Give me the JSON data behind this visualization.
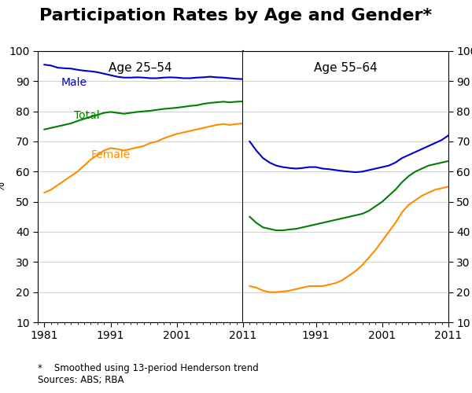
{
  "title": "Participation Rates by Age and Gender*",
  "subtitle_left": "Age 25–54",
  "subtitle_right": "Age 55–64",
  "ylabel_left": "%",
  "ylabel_right": "%",
  "ylim": [
    10,
    100
  ],
  "yticks": [
    10,
    20,
    30,
    40,
    50,
    60,
    70,
    80,
    90,
    100
  ],
  "xticks_left": [
    1981,
    1991,
    2001,
    2011
  ],
  "xticks_right": [
    1991,
    2001,
    2011
  ],
  "xlim_left": [
    1980,
    2011
  ],
  "xlim_right": [
    1980,
    2011
  ],
  "footnote": "*    Smoothed using 13-period Henderson trend\nSources: ABS; RBA",
  "male_color": "#0000cc",
  "total_color": "#008000",
  "female_color": "#ff8c00",
  "line_width": 1.5,
  "panel_label_fontsize": 11,
  "title_fontsize": 16,
  "tick_fontsize": 10,
  "annotation_fontsize": 10,
  "left_male": {
    "x": [
      1981,
      1982,
      1983,
      1984,
      1985,
      1986,
      1987,
      1988,
      1989,
      1990,
      1991,
      1992,
      1993,
      1994,
      1995,
      1996,
      1997,
      1998,
      1999,
      2000,
      2001,
      2002,
      2003,
      2004,
      2005,
      2006,
      2007,
      2008,
      2009,
      2010,
      2011
    ],
    "y": [
      95.5,
      95.2,
      94.5,
      94.3,
      94.2,
      93.8,
      93.5,
      93.3,
      93.0,
      92.5,
      92.0,
      91.5,
      91.2,
      91.2,
      91.3,
      91.2,
      91.0,
      91.0,
      91.2,
      91.3,
      91.2,
      91.0,
      91.0,
      91.2,
      91.3,
      91.5,
      91.3,
      91.2,
      91.0,
      90.8,
      90.7
    ]
  },
  "left_total": {
    "x": [
      1981,
      1982,
      1983,
      1984,
      1985,
      1986,
      1987,
      1988,
      1989,
      1990,
      1991,
      1992,
      1993,
      1994,
      1995,
      1996,
      1997,
      1998,
      1999,
      2000,
      2001,
      2002,
      2003,
      2004,
      2005,
      2006,
      2007,
      2008,
      2009,
      2010,
      2011
    ],
    "y": [
      74.0,
      74.5,
      75.0,
      75.5,
      76.0,
      76.8,
      77.5,
      78.2,
      78.8,
      79.5,
      79.8,
      79.5,
      79.2,
      79.5,
      79.8,
      80.0,
      80.2,
      80.5,
      80.8,
      81.0,
      81.2,
      81.5,
      81.8,
      82.0,
      82.5,
      82.8,
      83.0,
      83.2,
      83.0,
      83.2,
      83.3
    ]
  },
  "left_female": {
    "x": [
      1981,
      1982,
      1983,
      1984,
      1985,
      1986,
      1987,
      1988,
      1989,
      1990,
      1991,
      1992,
      1993,
      1994,
      1995,
      1996,
      1997,
      1998,
      1999,
      2000,
      2001,
      2002,
      2003,
      2004,
      2005,
      2006,
      2007,
      2008,
      2009,
      2010,
      2011
    ],
    "y": [
      53.0,
      54.0,
      55.5,
      57.0,
      58.5,
      60.0,
      62.0,
      64.0,
      65.5,
      67.0,
      67.8,
      67.5,
      67.0,
      67.5,
      68.0,
      68.5,
      69.5,
      70.0,
      71.0,
      71.8,
      72.5,
      73.0,
      73.5,
      74.0,
      74.5,
      75.0,
      75.5,
      75.8,
      75.5,
      75.8,
      76.0
    ]
  },
  "right_male": {
    "x": [
      1981,
      1982,
      1983,
      1984,
      1985,
      1986,
      1987,
      1988,
      1989,
      1990,
      1991,
      1992,
      1993,
      1994,
      1995,
      1996,
      1997,
      1998,
      1999,
      2000,
      2001,
      2002,
      2003,
      2004,
      2005,
      2006,
      2007,
      2008,
      2009,
      2010,
      2011
    ],
    "y": [
      70.0,
      67.0,
      64.5,
      63.0,
      62.0,
      61.5,
      61.2,
      61.0,
      61.2,
      61.5,
      61.5,
      61.0,
      60.8,
      60.5,
      60.2,
      60.0,
      59.8,
      60.0,
      60.5,
      61.0,
      61.5,
      62.0,
      63.0,
      64.5,
      65.5,
      66.5,
      67.5,
      68.5,
      69.5,
      70.5,
      72.0
    ]
  },
  "right_total": {
    "x": [
      1981,
      1982,
      1983,
      1984,
      1985,
      1986,
      1987,
      1988,
      1989,
      1990,
      1991,
      1992,
      1993,
      1994,
      1995,
      1996,
      1997,
      1998,
      1999,
      2000,
      2001,
      2002,
      2003,
      2004,
      2005,
      2006,
      2007,
      2008,
      2009,
      2010,
      2011
    ],
    "y": [
      45.0,
      43.0,
      41.5,
      41.0,
      40.5,
      40.5,
      40.8,
      41.0,
      41.5,
      42.0,
      42.5,
      43.0,
      43.5,
      44.0,
      44.5,
      45.0,
      45.5,
      46.0,
      47.0,
      48.5,
      50.0,
      52.0,
      54.0,
      56.5,
      58.5,
      60.0,
      61.0,
      62.0,
      62.5,
      63.0,
      63.5
    ]
  },
  "right_female": {
    "x": [
      1981,
      1982,
      1983,
      1984,
      1985,
      1986,
      1987,
      1988,
      1989,
      1990,
      1991,
      1992,
      1993,
      1994,
      1995,
      1996,
      1997,
      1998,
      1999,
      2000,
      2001,
      2002,
      2003,
      2004,
      2005,
      2006,
      2007,
      2008,
      2009,
      2010,
      2011
    ],
    "y": [
      22.0,
      21.5,
      20.5,
      20.0,
      20.0,
      20.2,
      20.5,
      21.0,
      21.5,
      22.0,
      22.0,
      22.0,
      22.5,
      23.0,
      24.0,
      25.5,
      27.0,
      29.0,
      31.5,
      34.0,
      37.0,
      40.0,
      43.0,
      46.5,
      49.0,
      50.5,
      52.0,
      53.0,
      54.0,
      54.5,
      55.0
    ]
  }
}
